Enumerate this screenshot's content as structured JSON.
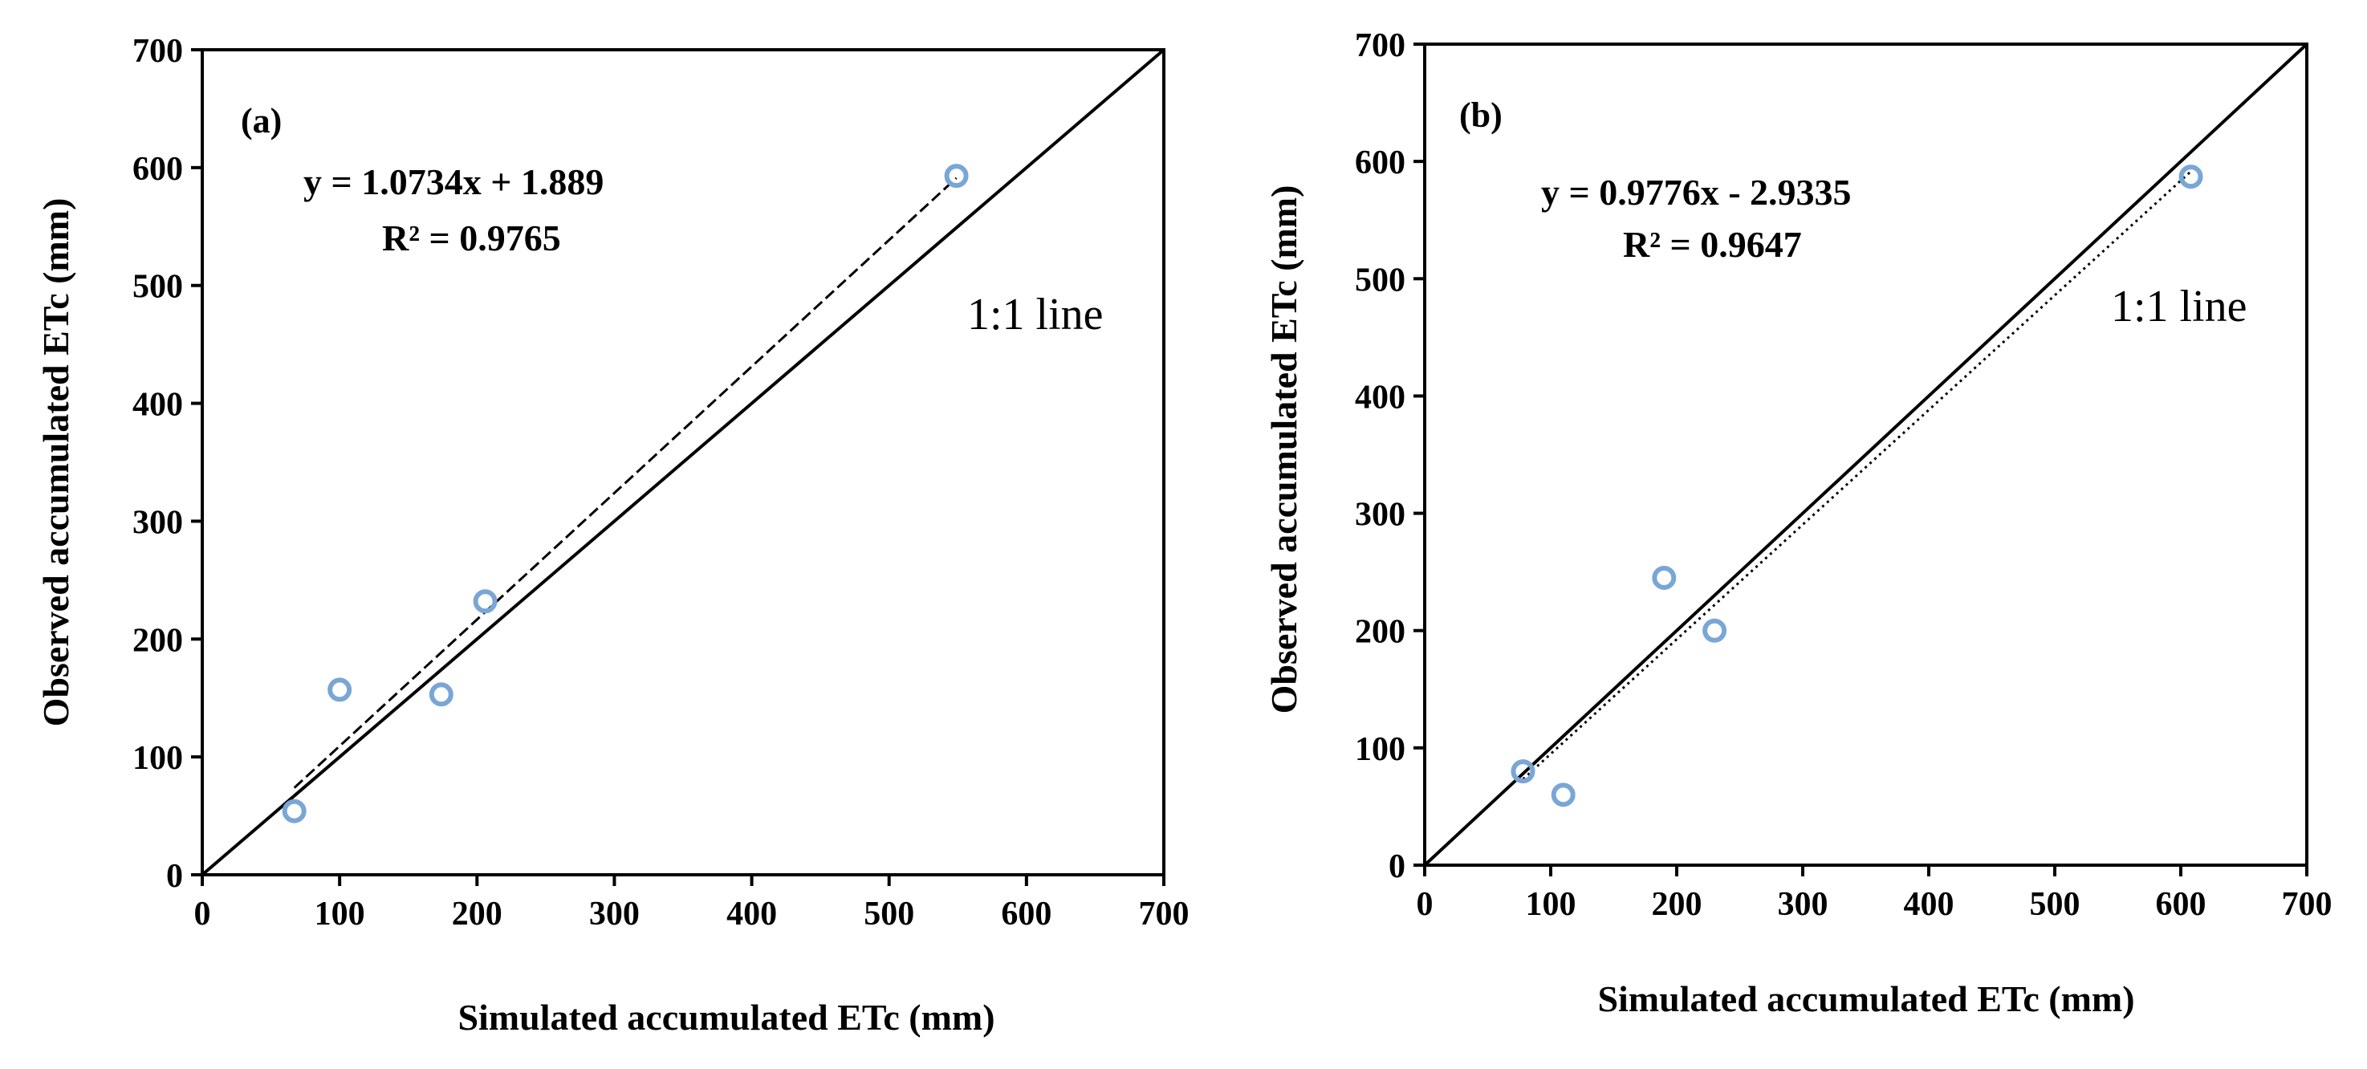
{
  "chart_data": [
    {
      "type": "scatter",
      "panel_label": "(a)",
      "xlabel": "Simulated accumulated ETc (mm)",
      "ylabel": "Observed accumulated ETc (mm)",
      "xlim": [
        0,
        700
      ],
      "ylim": [
        0,
        700
      ],
      "xticks": [
        "0",
        "100",
        "200",
        "300",
        "400",
        "500",
        "600",
        "700"
      ],
      "yticks": [
        "0",
        "100",
        "200",
        "300",
        "400",
        "500",
        "600",
        "700"
      ],
      "series": [
        {
          "name": "observations",
          "x": [
            67,
            100,
            174,
            206,
            549
          ],
          "y": [
            54,
            157,
            153,
            232,
            593
          ]
        }
      ],
      "trendline": {
        "equation": "y = 1.0734x + 1.889",
        "r2_label": "R² = 0.9765",
        "slope": 1.0734,
        "intercept": 1.889,
        "x_range": [
          67,
          549
        ],
        "style": "dashed"
      },
      "reference_line": {
        "label": "1:1 line"
      },
      "marker_color": "#7aa6d6"
    },
    {
      "type": "scatter",
      "panel_label": "(b)",
      "xlabel": "Simulated accumulated ETc (mm)",
      "ylabel": "Observed accumulated ETc (mm)",
      "xlim": [
        0,
        700
      ],
      "ylim": [
        0,
        700
      ],
      "xticks": [
        "0",
        "100",
        "200",
        "300",
        "400",
        "500",
        "600",
        "700"
      ],
      "yticks": [
        "0",
        "100",
        "200",
        "300",
        "400",
        "500",
        "600",
        "700"
      ],
      "series": [
        {
          "name": "observations",
          "x": [
            78,
            110,
            190,
            230,
            608
          ],
          "y": [
            80,
            60,
            245,
            200,
            587
          ]
        }
      ],
      "trendline": {
        "equation": "y = 0.9776x - 2.9335",
        "r2_label": "R² = 0.9647",
        "slope": 0.9776,
        "intercept": -2.9335,
        "x_range": [
          78,
          608
        ],
        "style": "dotted"
      },
      "reference_line": {
        "label": "1:1 line"
      },
      "marker_color": "#7aa6d6"
    }
  ]
}
